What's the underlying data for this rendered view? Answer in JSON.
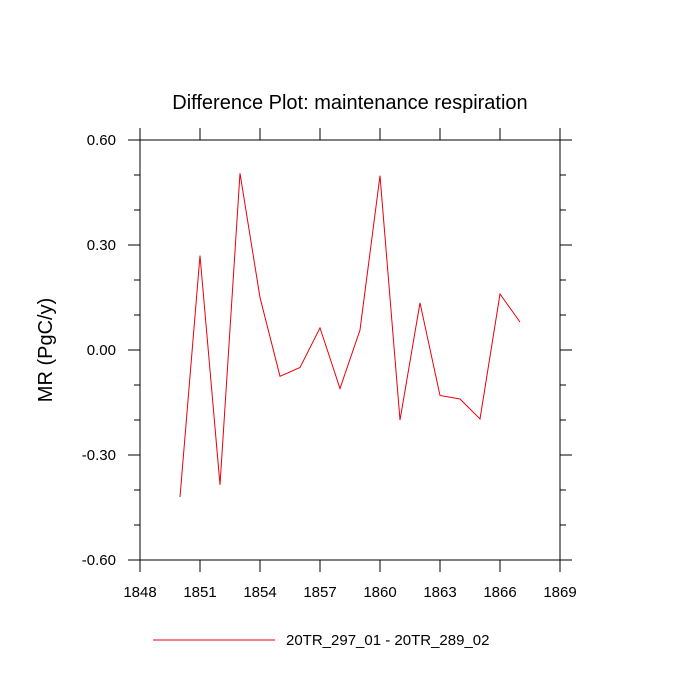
{
  "chart_data": {
    "type": "line",
    "title": "Difference Plot: maintenance respiration",
    "xlabel": "",
    "ylabel": "MR  (PgC/y)",
    "xlim": [
      1848,
      1869
    ],
    "ylim": [
      -0.6,
      0.6
    ],
    "x_ticks": [
      1848,
      1851,
      1854,
      1857,
      1860,
      1863,
      1866,
      1869
    ],
    "x_tick_labels": [
      "1848",
      "1851",
      "1854",
      "1857",
      "1860",
      "1863",
      "1866",
      "1869"
    ],
    "y_ticks": [
      -0.6,
      -0.3,
      0.0,
      0.3,
      0.6
    ],
    "y_tick_labels": [
      "-0.60",
      "-0.30",
      "0.00",
      "0.30",
      "0.60"
    ],
    "grid": false,
    "legend_position": "bottom",
    "series": [
      {
        "name": "20TR_297_01 - 20TR_289_02",
        "color": "#e8000b",
        "x": [
          1850,
          1851,
          1852,
          1853,
          1854,
          1855,
          1856,
          1857,
          1858,
          1859,
          1860,
          1861,
          1862,
          1863,
          1864,
          1865,
          1866,
          1867
        ],
        "y": [
          -0.42,
          0.27,
          -0.385,
          0.505,
          0.15,
          -0.075,
          -0.05,
          0.063,
          -0.11,
          0.057,
          0.498,
          -0.2,
          0.135,
          -0.13,
          -0.14,
          -0.197,
          0.16,
          0.08
        ]
      }
    ]
  }
}
